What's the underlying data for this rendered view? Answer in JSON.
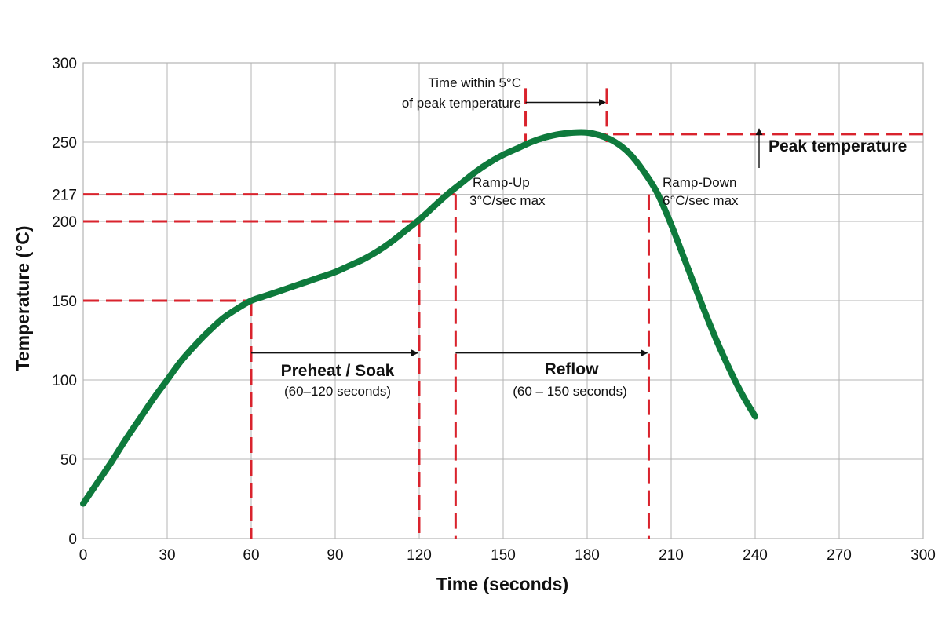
{
  "chart_data": {
    "type": "line",
    "xlabel": "Time (seconds)",
    "ylabel": "Temperature (°C)",
    "xlim": [
      0,
      300
    ],
    "ylim": [
      0,
      300
    ],
    "x_ticks": [
      0,
      30,
      60,
      90,
      120,
      150,
      180,
      210,
      240,
      270,
      300
    ],
    "y_ticks": [
      0,
      50,
      100,
      150,
      200,
      217,
      250,
      300
    ],
    "grid": true,
    "colors": {
      "curve": "#0e7a3c",
      "guide": "#d9232d",
      "grid": "#b4b4b4",
      "text": "#111111"
    },
    "series": [
      {
        "x": [
          0,
          5,
          10,
          15,
          20,
          25,
          30,
          35,
          40,
          45,
          50,
          55,
          60,
          65,
          70,
          75,
          80,
          85,
          90,
          95,
          100,
          105,
          110,
          115,
          120,
          125,
          130,
          135,
          140,
          145,
          150,
          155,
          160,
          165,
          170,
          175,
          180,
          185,
          190,
          195,
          200,
          205,
          210,
          215,
          220,
          225,
          230,
          235,
          240
        ],
        "y": [
          22,
          35,
          48,
          62,
          75,
          88,
          100,
          112,
          122,
          131,
          139,
          145,
          150,
          153,
          156,
          159,
          162,
          165,
          168,
          172,
          176,
          181,
          187,
          194,
          201,
          209,
          217,
          224,
          231,
          237,
          242,
          246,
          250,
          253,
          255,
          256,
          256,
          254,
          250,
          243,
          232,
          218,
          198,
          175,
          152,
          130,
          110,
          92,
          77
        ]
      }
    ],
    "reference_lines": [
      {
        "axis": "y",
        "value": 150,
        "x_range": [
          0,
          60
        ]
      },
      {
        "axis": "y",
        "value": 200,
        "x_range": [
          0,
          120
        ]
      },
      {
        "axis": "y",
        "value": 217,
        "x_range": [
          0,
          133
        ]
      },
      {
        "axis": "y",
        "value": 255,
        "x_range": [
          173,
          300
        ]
      },
      {
        "axis": "x",
        "value": 60,
        "y_range": [
          0,
          150
        ]
      },
      {
        "axis": "x",
        "value": 120,
        "y_range": [
          0,
          200
        ]
      },
      {
        "axis": "x",
        "value": 133,
        "y_range": [
          0,
          217
        ]
      },
      {
        "axis": "x",
        "value": 202,
        "y_range": [
          0,
          217
        ]
      },
      {
        "axis": "x",
        "value": 158,
        "y_range": [
          250,
          284
        ]
      },
      {
        "axis": "x",
        "value": 187,
        "y_range": [
          250,
          284
        ]
      }
    ],
    "spans": [
      {
        "x_from": 60,
        "x_to": 120,
        "y": 117
      },
      {
        "x_from": 133,
        "x_to": 202,
        "y": 117
      },
      {
        "x_from": 158,
        "x_to": 187,
        "y": 275
      }
    ],
    "annotations": {
      "preheat_title": "Preheat / Soak",
      "preheat_range": "(60–120 seconds)",
      "reflow_title": "Reflow",
      "reflow_range": "(60 – 150 seconds)",
      "ramp_up_title": "Ramp-Up",
      "ramp_up_rate": "3°C/sec max",
      "ramp_down_title": "Ramp-Down",
      "ramp_down_rate": "6°C/sec max",
      "peak_label": "Peak temperature",
      "time_within_line1": "Time within 5°C",
      "time_within_line2": "of peak temperature"
    }
  }
}
